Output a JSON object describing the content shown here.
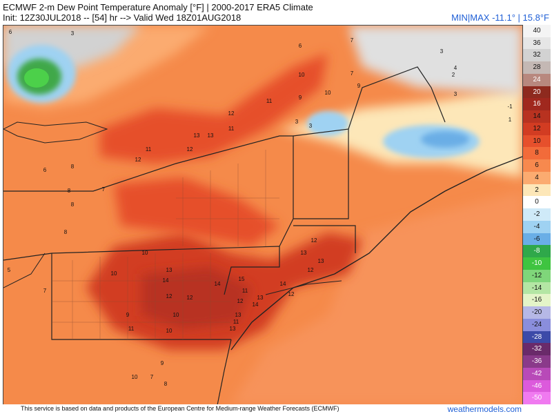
{
  "header": {
    "title_line1": "ECMWF 2-m Dew Point Temperature Anomaly [°F] | 2000-2017 ERA5 Climate",
    "title_line2": "Init: 12Z30JUL2018 -- [54] hr --> Valid Wed 18Z01AUG2018",
    "minmax": "MIN|MAX -11.1° | 15.8°F"
  },
  "colors": {
    "background_anomaly": "#f58a4a",
    "warm_core": "#c8321e",
    "cool_blue": "#6e9fe0",
    "accent_blue": "#1f5fd6"
  },
  "colorbar": {
    "levels": [
      {
        "label": "40",
        "color": "#f4f4f4"
      },
      {
        "label": "36",
        "color": "#e6e6e6"
      },
      {
        "label": "32",
        "color": "#d2d2d2"
      },
      {
        "label": "28",
        "color": "#c4b8b4"
      },
      {
        "label": "24",
        "color": "#b8887e"
      },
      {
        "label": "20",
        "color": "#8e2a1e"
      },
      {
        "label": "16",
        "color": "#a0281e"
      },
      {
        "label": "14",
        "color": "#b83220"
      },
      {
        "label": "12",
        "color": "#d23c22"
      },
      {
        "label": "10",
        "color": "#e6502c"
      },
      {
        "label": "8",
        "color": "#f26b3a"
      },
      {
        "label": "6",
        "color": "#f7894e"
      },
      {
        "label": "4",
        "color": "#fbab70"
      },
      {
        "label": "2",
        "color": "#fde7b8"
      },
      {
        "label": "0",
        "color": "#ffffff"
      },
      {
        "label": "-2",
        "color": "#cfeaf8"
      },
      {
        "label": "-4",
        "color": "#9fd2f2"
      },
      {
        "label": "-6",
        "color": "#6aaee6"
      },
      {
        "label": "-8",
        "color": "#2fa84a"
      },
      {
        "label": "-10",
        "color": "#3fc440"
      },
      {
        "label": "-12",
        "color": "#7fd67a"
      },
      {
        "label": "-14",
        "color": "#b4e6a4"
      },
      {
        "label": "-16",
        "color": "#e4f4c8"
      },
      {
        "label": "-20",
        "color": "#b6b8e6"
      },
      {
        "label": "-24",
        "color": "#8a8edc"
      },
      {
        "label": "-28",
        "color": "#3c4aa8"
      },
      {
        "label": "-32",
        "color": "#6a2a6a"
      },
      {
        "label": "-36",
        "color": "#8a3a8a"
      },
      {
        "label": "-42",
        "color": "#b84ab8"
      },
      {
        "label": "-46",
        "color": "#dc5adc"
      },
      {
        "label": "-50",
        "color": "#f07af0"
      }
    ]
  },
  "map": {
    "numbers": [
      "3",
      "7",
      "6",
      "10",
      "7",
      "9",
      "10",
      "9",
      "11",
      "12",
      "13",
      "12",
      "11",
      "13",
      "14",
      "13",
      "12",
      "14",
      "15",
      "12",
      "13",
      "11",
      "13",
      "12",
      "10",
      "9",
      "11",
      "10",
      "10",
      "12",
      "13",
      "13",
      "12",
      "12",
      "14",
      "13",
      "14",
      "11",
      "3",
      "2",
      "3",
      "3",
      "-1",
      "1",
      "7",
      "8",
      "6",
      "8",
      "8",
      "5",
      "7",
      "4",
      "3",
      "8",
      "10",
      "7",
      "9",
      "12",
      "11",
      "10",
      "8",
      "6"
    ]
  },
  "footer": {
    "notice": "This service is based on data and products of the European Centre for Medium-range Weather Forecasts (ECMWF)",
    "brand": "weathermodels.com"
  }
}
